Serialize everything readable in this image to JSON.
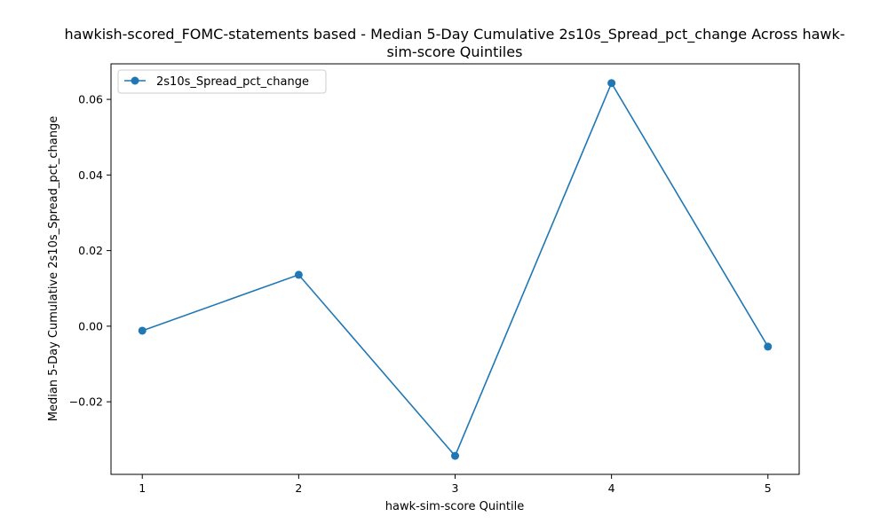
{
  "chart_data": {
    "type": "line",
    "title_lines": [
      "hawkish-scored_FOMC-statements based - Median 5-Day Cumulative 2s10s_Spread_pct_change Across hawk-",
      "sim-score Quintiles"
    ],
    "xlabel": "hawk-sim-score Quintile",
    "ylabel": "Median 5-Day Cumulative 2s10s_Spread_pct_change",
    "x": [
      1,
      2,
      3,
      4,
      5
    ],
    "x_tick_labels": [
      "1",
      "2",
      "3",
      "4",
      "5"
    ],
    "xlim": [
      0.8,
      5.2
    ],
    "y_ticks": [
      -0.02,
      0.0,
      0.02,
      0.04,
      0.06
    ],
    "y_tick_labels": [
      "−0.02",
      "0.00",
      "0.02",
      "0.04",
      "0.06"
    ],
    "ylim": [
      -0.0392,
      0.0694
    ],
    "series": [
      {
        "name": "2s10s_Spread_pct_change",
        "values": [
          -0.0012,
          0.0136,
          -0.0343,
          0.0643,
          -0.0054
        ],
        "color": "#1f77b4",
        "marker": "circle"
      }
    ],
    "legend_position": "upper-left",
    "grid": false
  }
}
